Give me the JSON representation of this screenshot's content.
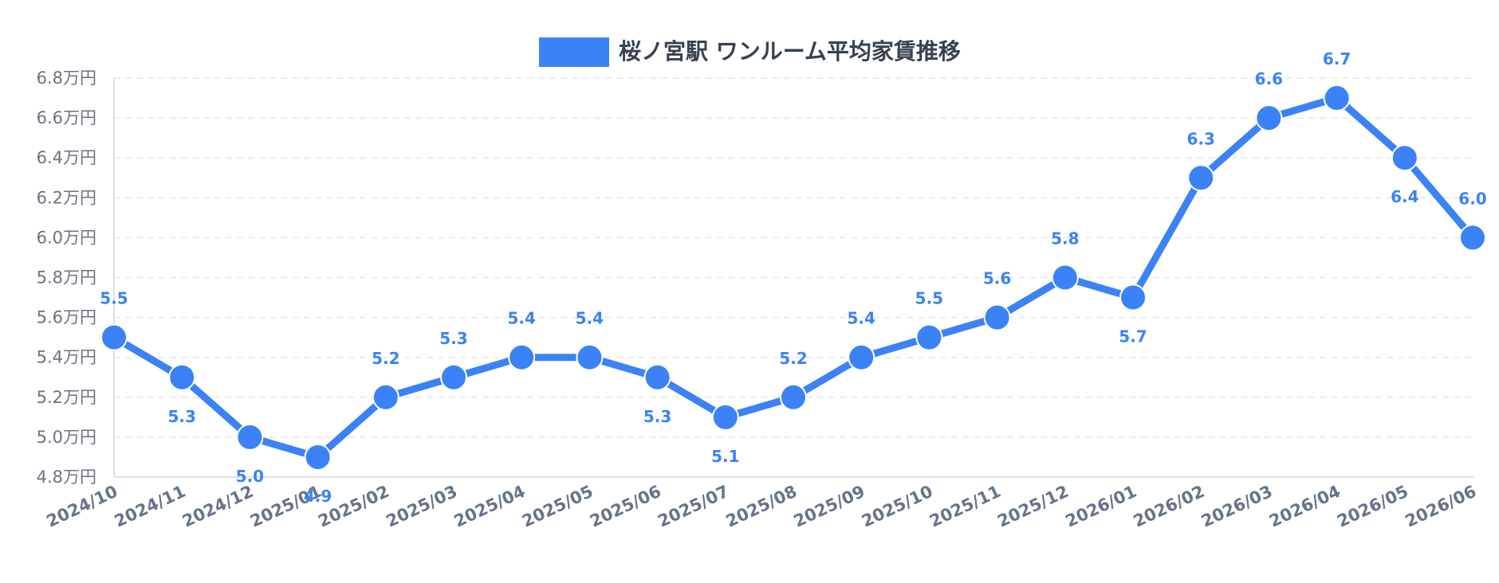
{
  "chart_data": {
    "type": "line",
    "title": "",
    "xlabel": "",
    "ylabel": "",
    "categories": [
      "2024/10",
      "2024/11",
      "2024/12",
      "2025/01",
      "2025/02",
      "2025/03",
      "2025/04",
      "2025/05",
      "2025/06",
      "2025/07",
      "2025/08",
      "2025/09",
      "2025/10",
      "2025/11",
      "2025/12",
      "2026/01",
      "2026/02",
      "2026/03",
      "2026/04",
      "2026/05",
      "2026/06"
    ],
    "series": [
      {
        "name": "桜ノ宮駅 ワンルーム平均家賃推移",
        "values": [
          5.5,
          5.3,
          5.0,
          4.9,
          5.2,
          5.3,
          5.4,
          5.4,
          5.3,
          5.1,
          5.2,
          5.4,
          5.5,
          5.6,
          5.8,
          5.7,
          6.3,
          6.6,
          6.7,
          6.4,
          6.0
        ],
        "color": "#3b82f6"
      }
    ],
    "ylim": [
      4.8,
      6.8
    ],
    "yticks": [
      4.8,
      5.0,
      5.2,
      5.4,
      5.6,
      5.8,
      6.0,
      6.2,
      6.4,
      6.6,
      6.8
    ],
    "ytick_labels": [
      "4.8万円",
      "5.0万円",
      "5.2万円",
      "5.4万円",
      "5.6万円",
      "5.8万円",
      "6.0万円",
      "6.2万円",
      "6.4万円",
      "6.6万円",
      "6.8万円"
    ],
    "data_labels": [
      "5.5",
      "5.3",
      "5.0",
      "4.9",
      "5.2",
      "5.3",
      "5.4",
      "5.4",
      "5.3",
      "5.1",
      "5.2",
      "5.4",
      "5.5",
      "5.6",
      "5.8",
      "5.7",
      "6.3",
      "6.6",
      "6.7",
      "6.4",
      "6.0"
    ],
    "legend_position": "top-center",
    "grid": true,
    "grid_color": "#e5e7eb",
    "axis_color": "#d1d5db"
  }
}
